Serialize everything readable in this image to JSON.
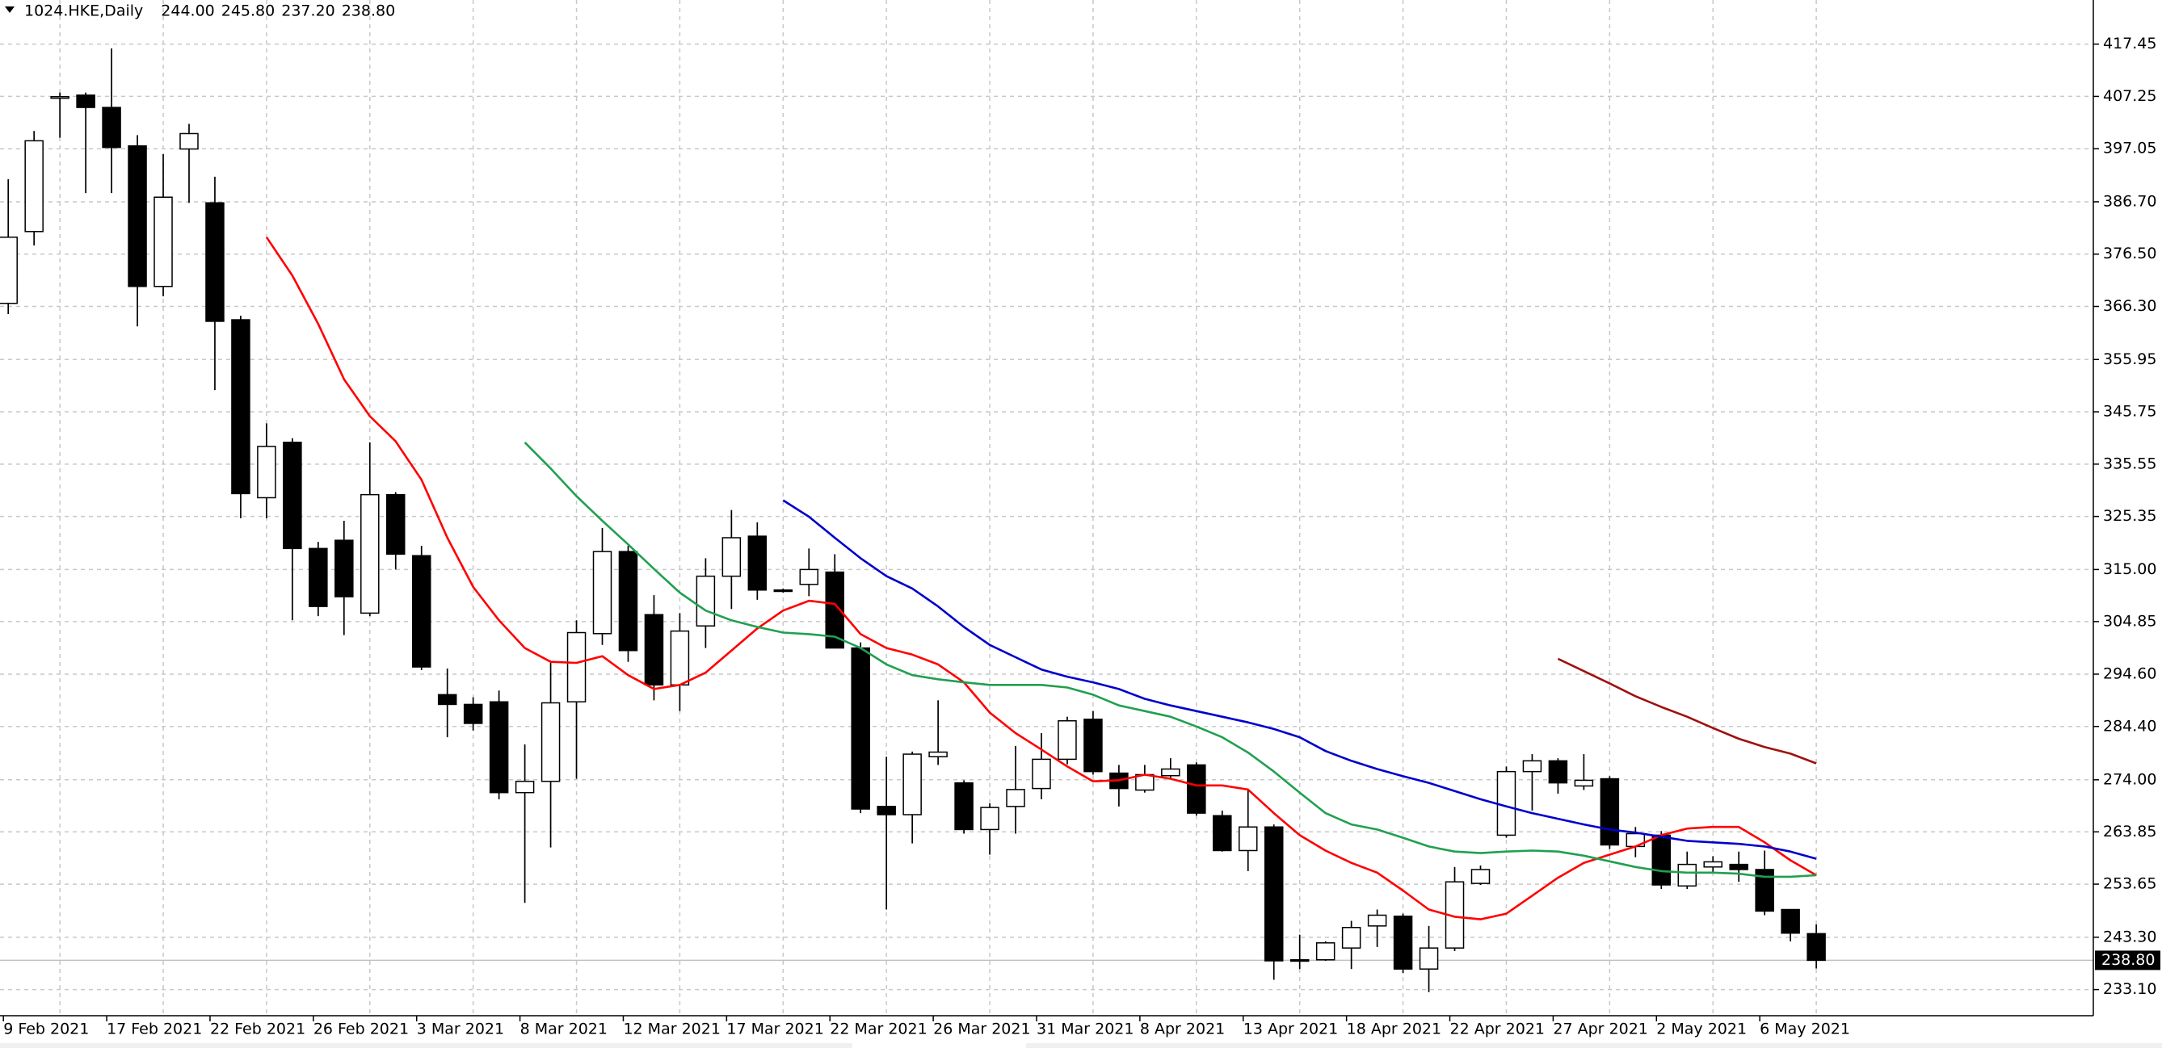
{
  "chart_data": {
    "type": "candlestick",
    "title": "1024.HKE,Daily",
    "header_ohlc": [
      "244.00",
      "245.80",
      "237.20",
      "238.80"
    ],
    "categories": [
      "9 Feb 2021",
      null,
      null,
      null,
      "17 Feb 2021",
      null,
      null,
      null,
      "22 Feb 2021",
      null,
      null,
      null,
      "26 Feb 2021",
      null,
      null,
      null,
      "3 Mar 2021",
      null,
      null,
      null,
      "8 Mar 2021",
      null,
      null,
      null,
      "12 Mar 2021",
      null,
      null,
      null,
      "17 Mar 2021",
      null,
      null,
      null,
      "22 Mar 2021",
      null,
      null,
      null,
      "26 Mar 2021",
      null,
      null,
      null,
      "31 Mar 2021",
      null,
      null,
      null,
      "8 Apr 2021",
      null,
      null,
      null,
      "13 Apr 2021",
      null,
      null,
      null,
      "18 Apr 2021",
      null,
      null,
      null,
      "22 Apr 2021",
      null,
      null,
      null,
      "27 Apr 2021",
      null,
      null,
      null,
      "2 May 2021",
      null,
      null,
      null,
      "6 May 2021",
      null,
      null
    ],
    "open": [
      366.9,
      380.9,
      406.9,
      407.5,
      405.1,
      397.6,
      370.2,
      397.0,
      386.5,
      363.7,
      329.0,
      339.8,
      319.1,
      320.7,
      306.5,
      329.6,
      317.7,
      290.6,
      288.7,
      289.2,
      271.5,
      273.7,
      289.2,
      302.5,
      318.5,
      306.2,
      292.5,
      304.0,
      313.7,
      321.5,
      311.0,
      312.1,
      314.5,
      299.7,
      268.8,
      267.2,
      278.5,
      273.4,
      264.3,
      268.8,
      272.3,
      278.0,
      285.8,
      275.3,
      272.0,
      274.8,
      276.9,
      267.0,
      260.2,
      264.8,
      238.9,
      238.9,
      241.2,
      245.5,
      247.4,
      237.1,
      241.2,
      253.8,
      263.2,
      275.6,
      277.7,
      272.8,
      274.2,
      261.0,
      263.2,
      253.3,
      257.0,
      257.5,
      256.5,
      248.7,
      244.0
    ],
    "high": [
      391.1,
      400.5,
      408.0,
      408.0,
      416.6,
      399.7,
      396.0,
      401.9,
      391.6,
      364.5,
      343.5,
      340.6,
      320.4,
      324.5,
      339.8,
      330.1,
      319.6,
      295.7,
      290.1,
      291.4,
      280.9,
      297.0,
      305.1,
      323.1,
      319.6,
      310.0,
      306.5,
      317.2,
      326.6,
      324.2,
      311.3,
      319.1,
      318.0,
      300.8,
      278.5,
      279.5,
      289.5,
      273.9,
      269.4,
      280.6,
      283.1,
      286.3,
      287.4,
      276.9,
      276.9,
      278.2,
      277.4,
      268.0,
      272.0,
      265.3,
      243.8,
      242.5,
      246.5,
      248.7,
      247.9,
      245.5,
      257.0,
      257.3,
      276.6,
      279.0,
      278.2,
      279.0,
      274.7,
      264.8,
      264.0,
      260.0,
      259.1,
      260.0,
      260.2,
      248.7,
      245.8
    ],
    "low": [
      364.8,
      378.2,
      399.2,
      388.4,
      388.4,
      362.4,
      368.3,
      386.5,
      350.0,
      325.0,
      325.0,
      305.1,
      305.9,
      302.2,
      305.9,
      315.0,
      295.4,
      282.3,
      283.6,
      270.2,
      250.0,
      260.8,
      274.2,
      300.3,
      297.0,
      289.5,
      287.4,
      299.7,
      307.3,
      309.1,
      310.5,
      309.8,
      299.7,
      267.5,
      248.7,
      261.6,
      276.9,
      263.5,
      259.4,
      263.5,
      270.2,
      277.0,
      275.0,
      268.8,
      271.5,
      274.2,
      267.0,
      260.0,
      256.2,
      235.0,
      237.1,
      238.7,
      237.1,
      241.4,
      236.3,
      232.6,
      240.6,
      253.5,
      262.7,
      268.0,
      271.3,
      272.0,
      260.5,
      258.9,
      252.7,
      252.7,
      255.7,
      254.1,
      247.6,
      242.5,
      237.2
    ],
    "close": [
      379.8,
      398.6,
      407.2,
      405.1,
      397.3,
      370.2,
      387.6,
      400.0,
      363.4,
      329.8,
      339.0,
      319.1,
      307.8,
      309.7,
      329.6,
      318.0,
      296.0,
      288.7,
      285.0,
      271.5,
      273.7,
      289.0,
      302.7,
      318.5,
      299.2,
      292.5,
      303.0,
      313.7,
      321.2,
      311.0,
      310.8,
      315.0,
      299.7,
      268.3,
      267.2,
      279.0,
      279.4,
      264.3,
      268.6,
      272.1,
      278.0,
      285.5,
      275.6,
      272.3,
      275.0,
      276.1,
      267.5,
      260.2,
      264.8,
      238.7,
      238.7,
      242.2,
      245.2,
      247.6,
      237.1,
      241.2,
      254.1,
      256.5,
      275.6,
      277.7,
      273.4,
      273.9,
      261.3,
      263.5,
      253.5,
      257.5,
      258.0,
      256.5,
      248.4,
      244.1,
      238.8
    ],
    "up_color": "#ffffff",
    "down_color": "#000000",
    "series": [
      {
        "color": "#ff0000",
        "values": [
          null,
          null,
          null,
          null,
          null,
          null,
          null,
          null,
          null,
          null,
          379.8,
          372.3,
          362.9,
          352.1,
          344.9,
          340.0,
          332.5,
          321.2,
          311.6,
          305.1,
          299.7,
          297.0,
          296.8,
          298.1,
          294.4,
          291.7,
          292.5,
          294.9,
          299.2,
          303.5,
          307.0,
          308.9,
          308.3,
          302.4,
          299.7,
          298.4,
          296.5,
          293.0,
          287.1,
          283.1,
          279.9,
          276.6,
          273.7,
          273.9,
          275.0,
          274.2,
          272.9,
          272.9,
          272.1,
          267.5,
          263.2,
          260.2,
          257.8,
          255.9,
          252.4,
          248.7,
          247.3,
          246.8,
          247.9,
          251.4,
          254.9,
          257.8,
          259.4,
          261.0,
          263.2,
          264.5,
          264.8,
          264.8,
          261.8,
          258.3,
          255.4
        ]
      },
      {
        "color": "#20a050",
        "values": [
          null,
          null,
          null,
          null,
          null,
          null,
          null,
          null,
          null,
          null,
          null,
          null,
          null,
          null,
          null,
          null,
          null,
          null,
          null,
          null,
          339.8,
          334.7,
          329.3,
          324.5,
          319.9,
          315.1,
          310.5,
          307.0,
          305.1,
          303.8,
          302.7,
          302.4,
          301.9,
          299.7,
          296.5,
          294.4,
          293.6,
          293.0,
          292.5,
          292.5,
          292.5,
          292.0,
          290.6,
          288.5,
          287.4,
          286.3,
          284.4,
          282.3,
          279.3,
          275.6,
          271.5,
          267.5,
          265.3,
          264.3,
          262.7,
          261.0,
          260.0,
          259.7,
          260.0,
          260.2,
          260.0,
          259.2,
          258.1,
          257.0,
          256.2,
          255.9,
          255.9,
          255.7,
          255.1,
          255.1,
          255.4
        ]
      },
      {
        "color": "#0000cc",
        "values": [
          null,
          null,
          null,
          null,
          null,
          null,
          null,
          null,
          null,
          null,
          null,
          null,
          null,
          null,
          null,
          null,
          null,
          null,
          null,
          null,
          null,
          null,
          null,
          null,
          null,
          null,
          null,
          null,
          null,
          null,
          328.5,
          325.3,
          321.2,
          317.2,
          313.7,
          311.3,
          307.8,
          303.8,
          300.3,
          297.9,
          295.5,
          294.1,
          293.0,
          291.7,
          289.8,
          288.5,
          287.4,
          286.3,
          285.2,
          283.9,
          282.3,
          279.6,
          277.7,
          276.1,
          274.7,
          273.4,
          271.8,
          270.2,
          268.8,
          267.5,
          266.4,
          265.3,
          264.3,
          263.7,
          262.9,
          262.1,
          261.8,
          261.5,
          261.0,
          260.0,
          258.6
        ]
      },
      {
        "color": "#a01010",
        "values": [
          null,
          null,
          null,
          null,
          null,
          null,
          null,
          null,
          null,
          null,
          null,
          null,
          null,
          null,
          null,
          null,
          null,
          null,
          null,
          null,
          null,
          null,
          null,
          null,
          null,
          null,
          null,
          null,
          null,
          null,
          null,
          null,
          null,
          null,
          null,
          null,
          null,
          null,
          null,
          null,
          null,
          null,
          null,
          null,
          null,
          null,
          null,
          null,
          null,
          null,
          null,
          null,
          null,
          null,
          null,
          null,
          null,
          null,
          null,
          null,
          297.6,
          295.2,
          292.8,
          290.3,
          288.2,
          286.3,
          284.1,
          282.0,
          280.4,
          279.1,
          277.2
        ]
      }
    ],
    "ylim": [
      228.0,
      426.05
    ],
    "yticks": [
      {
        "value": 233.1,
        "label": "233.10"
      },
      {
        "value": 243.3,
        "label": "243.30"
      },
      {
        "value": 253.65,
        "label": "253.65"
      },
      {
        "value": 263.85,
        "label": "263.85"
      },
      {
        "value": 274.0,
        "label": "274.00"
      },
      {
        "value": 284.4,
        "label": "284.40"
      },
      {
        "value": 294.6,
        "label": "294.60"
      },
      {
        "value": 304.85,
        "label": "304.85"
      },
      {
        "value": 315.0,
        "label": "315.00"
      },
      {
        "value": 325.35,
        "label": "325.35"
      },
      {
        "value": 335.55,
        "label": "335.55"
      },
      {
        "value": 345.75,
        "label": "345.75"
      },
      {
        "value": 355.95,
        "label": "355.95"
      },
      {
        "value": 366.3,
        "label": "366.30"
      },
      {
        "value": 376.5,
        "label": "376.50"
      },
      {
        "value": 386.7,
        "label": "386.70"
      },
      {
        "value": 397.05,
        "label": "397.05"
      },
      {
        "value": 407.25,
        "label": "407.25"
      },
      {
        "value": 417.45,
        "label": "417.45"
      }
    ],
    "last_price": {
      "value": 238.8,
      "label": "238.80"
    },
    "grid": true
  }
}
